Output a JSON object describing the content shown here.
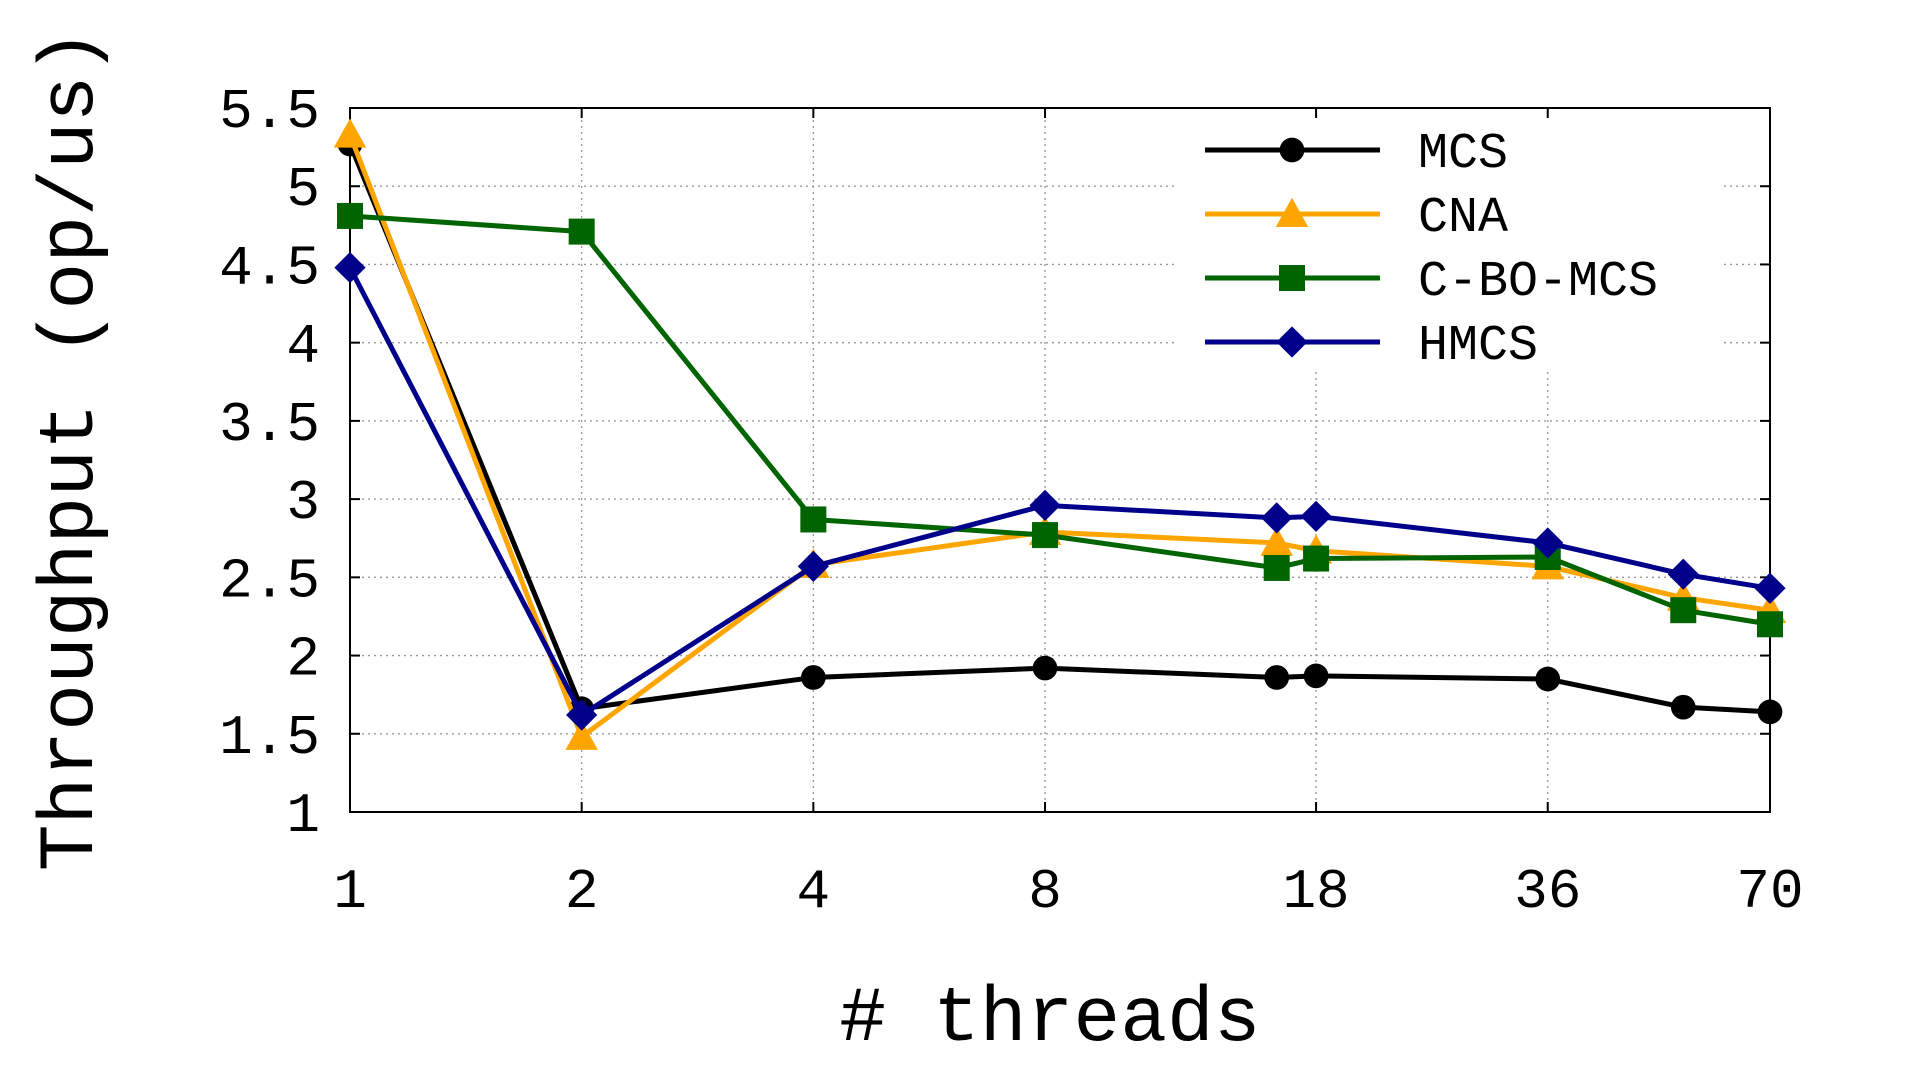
{
  "chart_data": {
    "type": "line",
    "xlabel": "# threads",
    "ylabel": "Throughput (op/us)",
    "x_ticks": [
      {
        "value": 1,
        "label": "1"
      },
      {
        "value": 2,
        "label": "2"
      },
      {
        "value": 4,
        "label": "4"
      },
      {
        "value": 8,
        "label": "8"
      },
      {
        "value": 18,
        "label": "18"
      },
      {
        "value": 36,
        "label": "36"
      },
      {
        "value": 70,
        "label": "70"
      }
    ],
    "x_scale": "log",
    "xlim": [
      1,
      70
    ],
    "y_ticks": [
      {
        "value": 1,
        "label": "1"
      },
      {
        "value": 1.5,
        "label": "1.5"
      },
      {
        "value": 2,
        "label": "2"
      },
      {
        "value": 2.5,
        "label": "2.5"
      },
      {
        "value": 3,
        "label": "3"
      },
      {
        "value": 3.5,
        "label": "3.5"
      },
      {
        "value": 4,
        "label": "4"
      },
      {
        "value": 4.5,
        "label": "4.5"
      },
      {
        "value": 5,
        "label": "5"
      },
      {
        "value": 5.5,
        "label": "5.5"
      }
    ],
    "ylim": [
      1,
      5.5
    ],
    "grid": true,
    "legend_position": "top-right",
    "x": [
      1,
      2,
      4,
      8,
      16,
      18,
      36,
      54,
      70
    ],
    "series": [
      {
        "name": "MCS",
        "color": "#000000",
        "marker": "circle",
        "values": [
          5.27,
          1.66,
          1.86,
          1.92,
          1.86,
          1.87,
          1.85,
          1.67,
          1.64
        ]
      },
      {
        "name": "CNA",
        "color": "#ffa500",
        "marker": "triangle",
        "values": [
          5.33,
          1.48,
          2.58,
          2.79,
          2.72,
          2.67,
          2.57,
          2.37,
          2.29
        ]
      },
      {
        "name": "C-BO-MCS",
        "color": "#006400",
        "marker": "square",
        "values": [
          4.81,
          4.71,
          2.87,
          2.77,
          2.56,
          2.62,
          2.63,
          2.29,
          2.2
        ]
      },
      {
        "name": "HMCS",
        "color": "#00008b",
        "marker": "diamond",
        "values": [
          4.48,
          1.62,
          2.57,
          2.96,
          2.88,
          2.89,
          2.72,
          2.52,
          2.43
        ]
      }
    ]
  }
}
